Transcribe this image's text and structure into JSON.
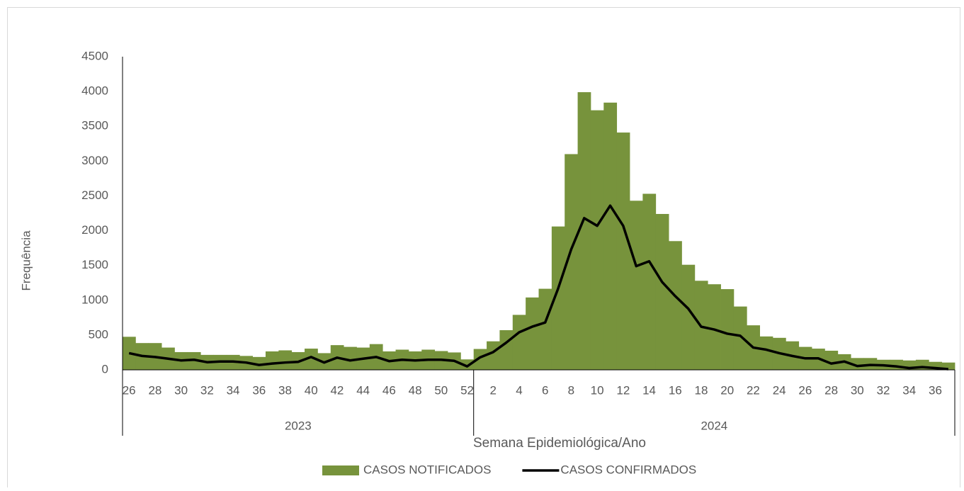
{
  "chart_data": {
    "type": "bar_line",
    "x_label": "Semana Epidemiológica/Ano",
    "y_label": "Frequência",
    "categories": [
      "26",
      null,
      "28",
      null,
      "30",
      null,
      "32",
      null,
      "34",
      null,
      "36",
      null,
      "38",
      null,
      "40",
      null,
      "42",
      null,
      "44",
      null,
      "46",
      null,
      "48",
      null,
      "50",
      null,
      "52",
      null,
      "2",
      null,
      "4",
      null,
      "6",
      null,
      "8",
      null,
      "10",
      null,
      "12",
      null,
      "14",
      null,
      "16",
      null,
      "18",
      null,
      "20",
      null,
      "22",
      null,
      "24",
      null,
      "26",
      null,
      "28",
      null,
      "30",
      null,
      "32",
      null,
      "34",
      null,
      "36",
      null
    ],
    "groups": [
      {
        "name": "2023",
        "count": 27
      },
      {
        "name": "2024",
        "count": 37
      }
    ],
    "series": [
      {
        "name": "CASOS NOTIFICADOS",
        "kind": "bar",
        "color": "#77933c",
        "values": [
          475,
          385,
          385,
          320,
          255,
          255,
          215,
          215,
          215,
          200,
          185,
          265,
          280,
          255,
          305,
          240,
          355,
          330,
          320,
          370,
          265,
          290,
          265,
          290,
          270,
          250,
          150,
          300,
          410,
          570,
          790,
          1040,
          1165,
          2060,
          3100,
          3990,
          3730,
          3840,
          3410,
          2430,
          2530,
          2240,
          1850,
          1510,
          1280,
          1230,
          1160,
          910,
          640,
          480,
          460,
          410,
          330,
          305,
          275,
          225,
          170,
          170,
          145,
          145,
          135,
          145,
          115,
          105
        ]
      },
      {
        "name": "CASOS CONFIRMADOS",
        "kind": "line",
        "color": "#000000",
        "values": [
          240,
          200,
          185,
          160,
          135,
          145,
          110,
          120,
          120,
          105,
          70,
          90,
          105,
          115,
          185,
          105,
          175,
          135,
          160,
          185,
          125,
          145,
          135,
          145,
          145,
          130,
          50,
          180,
          255,
          390,
          540,
          620,
          680,
          1170,
          1730,
          2180,
          2070,
          2360,
          2070,
          1490,
          1560,
          1260,
          1060,
          880,
          620,
          580,
          520,
          490,
          320,
          290,
          240,
          200,
          165,
          165,
          90,
          120,
          55,
          70,
          65,
          50,
          25,
          40,
          25,
          10
        ]
      }
    ],
    "ylim": [
      0,
      4500
    ],
    "yticks": [
      0,
      500,
      1000,
      1500,
      2000,
      2500,
      3000,
      3500,
      4000,
      4500
    ],
    "legend": "bottom"
  }
}
